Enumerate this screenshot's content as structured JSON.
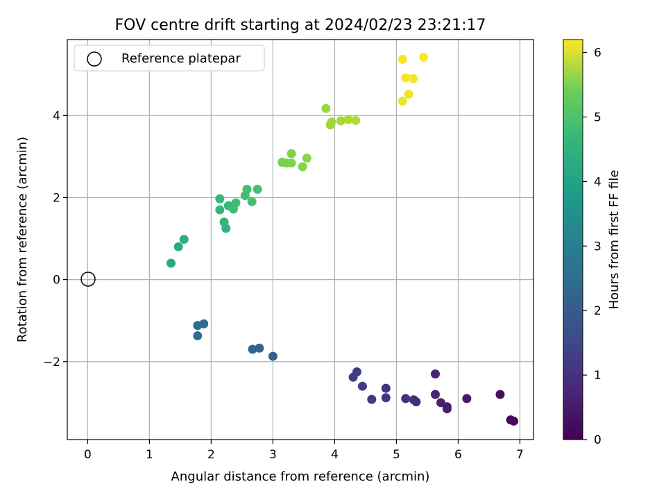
{
  "chart_data": {
    "type": "scatter",
    "title": "FOV centre drift starting at 2024/02/23 23:21:17",
    "xlabel": "Angular distance from reference (arcmin)",
    "ylabel": "Rotation from reference (arcmin)",
    "xlim": [
      -0.33,
      7.22
    ],
    "ylim": [
      -3.9,
      5.85
    ],
    "xticks": [
      0,
      1,
      2,
      3,
      4,
      5,
      6,
      7
    ],
    "yticks": [
      -2,
      0,
      2,
      4
    ],
    "grid": true,
    "legend": {
      "position": "top-left",
      "entries": [
        "Reference platepar"
      ]
    },
    "reference_point": {
      "x": 0,
      "y": 0,
      "label": "Reference platepar"
    },
    "colorbar": {
      "label": "Hours from first FF file",
      "range": [
        0,
        6.2
      ],
      "ticks": [
        0,
        1,
        2,
        3,
        4,
        5,
        6
      ],
      "colormap": "viridis"
    },
    "points": [
      {
        "x": 6.9,
        "y": -3.45,
        "h": 0.1
      },
      {
        "x": 6.85,
        "y": -3.42,
        "h": 0.15
      },
      {
        "x": 6.68,
        "y": -2.8,
        "h": 0.25
      },
      {
        "x": 6.14,
        "y": -2.9,
        "h": 0.35
      },
      {
        "x": 5.82,
        "y": -3.1,
        "h": 0.45
      },
      {
        "x": 5.82,
        "y": -3.15,
        "h": 0.5
      },
      {
        "x": 5.72,
        "y": -3.0,
        "h": 0.55
      },
      {
        "x": 5.63,
        "y": -2.3,
        "h": 0.6
      },
      {
        "x": 5.63,
        "y": -2.8,
        "h": 0.65
      },
      {
        "x": 5.32,
        "y": -2.98,
        "h": 0.75
      },
      {
        "x": 5.28,
        "y": -2.93,
        "h": 0.8
      },
      {
        "x": 5.15,
        "y": -2.9,
        "h": 0.85
      },
      {
        "x": 4.83,
        "y": -2.65,
        "h": 0.9
      },
      {
        "x": 4.83,
        "y": -2.88,
        "h": 0.95
      },
      {
        "x": 4.6,
        "y": -2.92,
        "h": 1.0
      },
      {
        "x": 4.45,
        "y": -2.6,
        "h": 1.05
      },
      {
        "x": 4.36,
        "y": -2.25,
        "h": 1.1
      },
      {
        "x": 4.3,
        "y": -2.38,
        "h": 1.15
      },
      {
        "x": 3.0,
        "y": -1.87,
        "h": 1.85
      },
      {
        "x": 2.78,
        "y": -1.67,
        "h": 1.95
      },
      {
        "x": 2.67,
        "y": -1.7,
        "h": 2.0
      },
      {
        "x": 1.88,
        "y": -1.08,
        "h": 2.15
      },
      {
        "x": 1.78,
        "y": -1.12,
        "h": 2.2
      },
      {
        "x": 1.78,
        "y": -1.37,
        "h": 2.25
      },
      {
        "x": 1.35,
        "y": 0.4,
        "h": 3.75
      },
      {
        "x": 1.47,
        "y": 0.8,
        "h": 3.85
      },
      {
        "x": 1.56,
        "y": 0.98,
        "h": 3.9
      },
      {
        "x": 2.24,
        "y": 1.25,
        "h": 4.0
      },
      {
        "x": 2.21,
        "y": 1.4,
        "h": 4.05
      },
      {
        "x": 2.14,
        "y": 1.7,
        "h": 4.1
      },
      {
        "x": 2.14,
        "y": 1.97,
        "h": 4.1
      },
      {
        "x": 2.28,
        "y": 1.8,
        "h": 4.15
      },
      {
        "x": 2.36,
        "y": 1.72,
        "h": 4.2
      },
      {
        "x": 2.4,
        "y": 1.87,
        "h": 4.25
      },
      {
        "x": 2.55,
        "y": 2.05,
        "h": 4.3
      },
      {
        "x": 2.58,
        "y": 2.2,
        "h": 4.3
      },
      {
        "x": 2.66,
        "y": 1.9,
        "h": 4.35
      },
      {
        "x": 2.75,
        "y": 2.2,
        "h": 4.4
      },
      {
        "x": 3.15,
        "y": 2.86,
        "h": 4.9
      },
      {
        "x": 3.22,
        "y": 2.84,
        "h": 4.95
      },
      {
        "x": 3.3,
        "y": 3.07,
        "h": 5.0
      },
      {
        "x": 3.3,
        "y": 2.84,
        "h": 5.0
      },
      {
        "x": 3.48,
        "y": 2.75,
        "h": 5.05
      },
      {
        "x": 3.55,
        "y": 2.96,
        "h": 5.1
      },
      {
        "x": 3.86,
        "y": 4.17,
        "h": 5.25
      },
      {
        "x": 3.93,
        "y": 3.77,
        "h": 5.3
      },
      {
        "x": 3.95,
        "y": 3.84,
        "h": 5.3
      },
      {
        "x": 4.1,
        "y": 3.87,
        "h": 5.35
      },
      {
        "x": 4.22,
        "y": 3.9,
        "h": 5.4
      },
      {
        "x": 4.34,
        "y": 3.88,
        "h": 5.45
      },
      {
        "x": 5.1,
        "y": 4.35,
        "h": 6.0
      },
      {
        "x": 5.2,
        "y": 4.52,
        "h": 6.05
      },
      {
        "x": 5.15,
        "y": 4.92,
        "h": 6.1
      },
      {
        "x": 5.27,
        "y": 4.9,
        "h": 6.1
      },
      {
        "x": 5.1,
        "y": 5.37,
        "h": 6.15
      },
      {
        "x": 5.44,
        "y": 5.42,
        "h": 6.2
      }
    ]
  }
}
